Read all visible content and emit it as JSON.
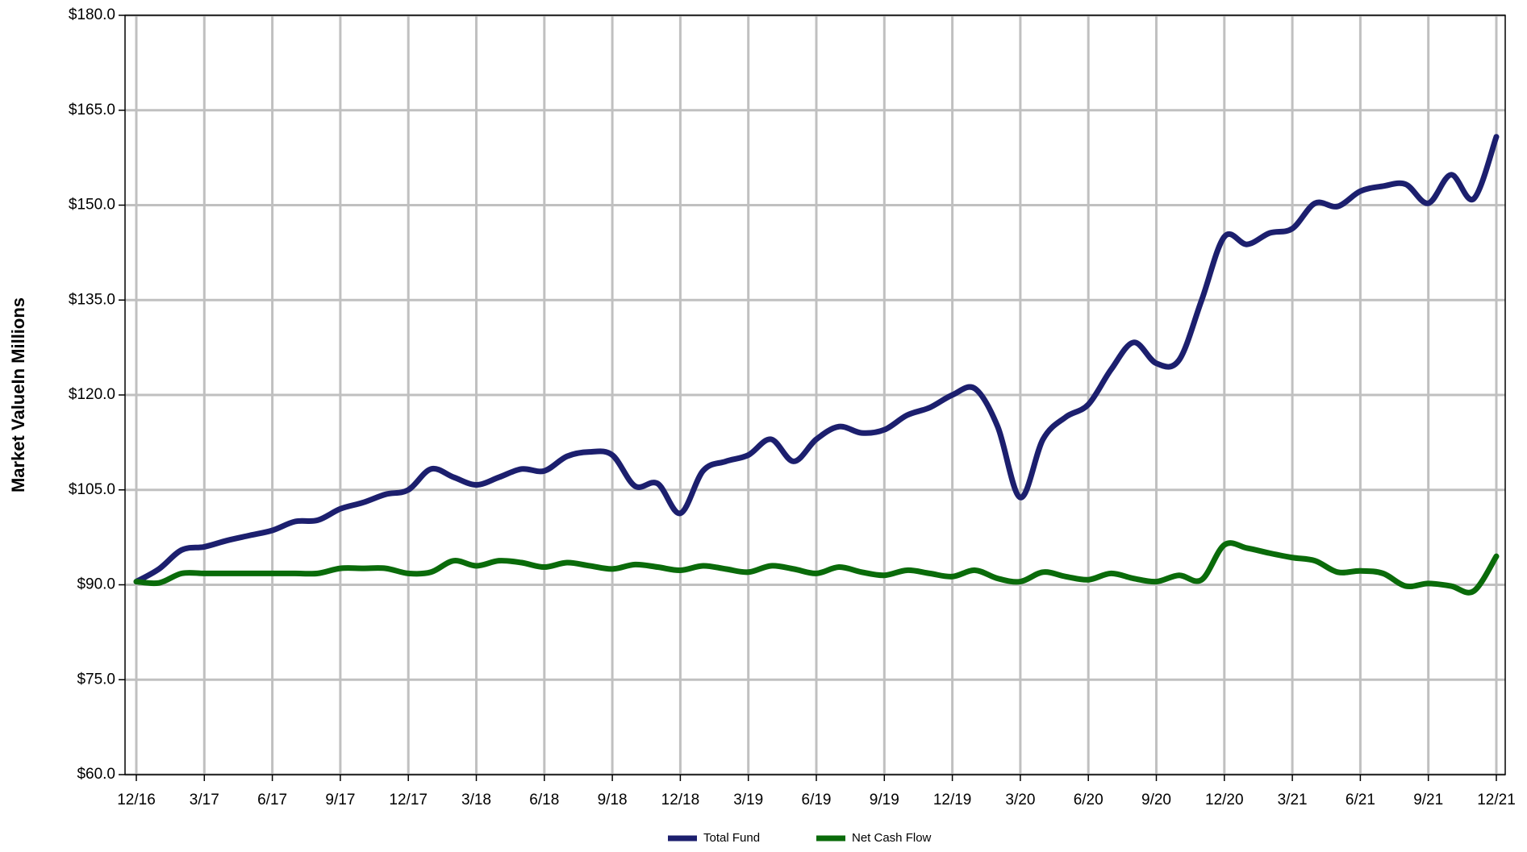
{
  "chart_data": {
    "type": "line",
    "y_label": "Market ValueIn Millions",
    "categories": [
      "12/16",
      null,
      null,
      "3/17",
      null,
      null,
      "6/17",
      null,
      null,
      "9/17",
      null,
      null,
      "12/17",
      null,
      null,
      "3/18",
      null,
      null,
      "6/18",
      null,
      null,
      "9/18",
      null,
      null,
      "12/18",
      null,
      null,
      "3/19",
      null,
      null,
      "6/19",
      null,
      null,
      "9/19",
      null,
      null,
      "12/19",
      null,
      null,
      "3/20",
      null,
      null,
      "6/20",
      null,
      null,
      "9/20",
      null,
      null,
      "12/20",
      null,
      null,
      "3/21",
      null,
      null,
      "6/21",
      null,
      null,
      "9/21",
      null,
      null,
      "12/21"
    ],
    "series": [
      {
        "name": "Total Fund",
        "color": "#1c1f6e",
        "values": [
          90.5,
          92.5,
          95.5,
          96,
          97,
          97.8,
          98.6,
          100,
          100.2,
          102,
          103,
          104.3,
          105,
          108.3,
          107,
          105.8,
          107,
          108.3,
          108,
          110.3,
          111,
          110.5,
          105.6,
          106,
          101.3,
          108,
          109.5,
          110.5,
          113,
          109.5,
          113,
          115,
          114,
          114.5,
          116.8,
          118,
          120,
          121,
          115,
          103.8,
          113,
          116.5,
          118.5,
          124,
          128.3,
          125,
          125.5,
          135,
          145,
          143.8,
          145.6,
          146.3,
          150.3,
          149.8,
          152.2,
          153,
          153.3,
          150.3,
          154.8,
          151,
          160.8
        ]
      },
      {
        "name": "Net Cash Flow",
        "color": "#0a6b0a",
        "values": [
          90.5,
          90.3,
          91.8,
          91.8,
          91.8,
          91.8,
          91.8,
          91.8,
          91.8,
          92.6,
          92.6,
          92.6,
          91.8,
          92,
          93.8,
          93,
          93.8,
          93.5,
          92.8,
          93.5,
          93,
          92.5,
          93.2,
          92.8,
          92.3,
          93,
          92.5,
          92,
          93,
          92.5,
          91.8,
          92.8,
          92,
          91.5,
          92.3,
          91.8,
          91.3,
          92.3,
          91,
          90.5,
          92,
          91.3,
          90.8,
          91.8,
          91,
          90.5,
          91.5,
          90.8,
          96.3,
          95.8,
          95,
          94.3,
          93.8,
          92,
          92.2,
          91.8,
          89.8,
          90.2,
          89.8,
          89,
          94.5
        ]
      }
    ],
    "ylim": [
      60,
      180
    ],
    "yticks": [
      {
        "value": 60,
        "label": "$60.0"
      },
      {
        "value": 75,
        "label": "$75.0"
      },
      {
        "value": 90,
        "label": "$90.0"
      },
      {
        "value": 105,
        "label": "$105.0"
      },
      {
        "value": 120,
        "label": "$120.0"
      },
      {
        "value": 135,
        "label": "$135.0"
      },
      {
        "value": 150,
        "label": "$150.0"
      },
      {
        "value": 165,
        "label": "$165.0"
      },
      {
        "value": 180,
        "label": "$180.0"
      }
    ],
    "grid": true,
    "legend": "bottom"
  }
}
